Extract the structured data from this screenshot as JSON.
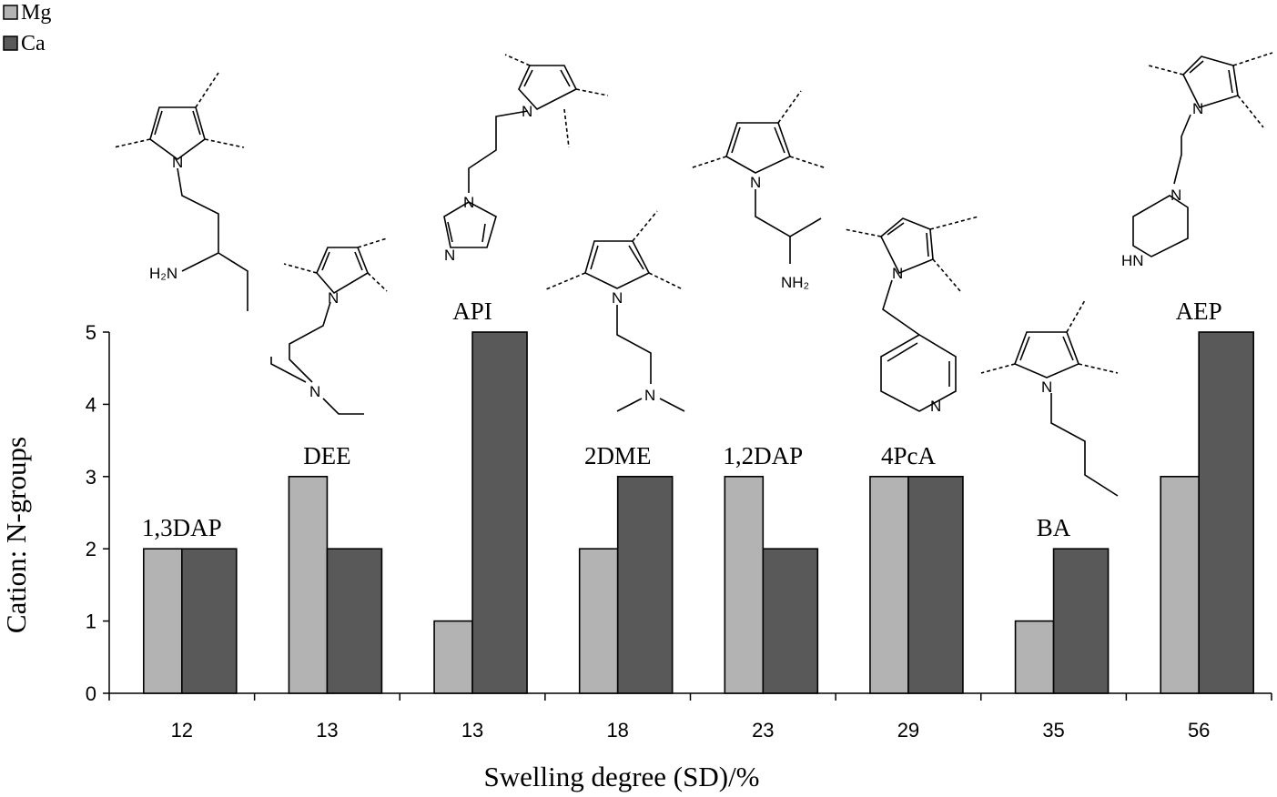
{
  "chart_data": {
    "type": "bar",
    "xlabel": "Swelling degree (SD)/%",
    "ylabel": "Cation: N-groups",
    "ylim": [
      0,
      5
    ],
    "yticks": [
      "0",
      "1",
      "2",
      "3",
      "4",
      "5"
    ],
    "categories": [
      "12",
      "13",
      "13",
      "18",
      "23",
      "29",
      "35",
      "56"
    ],
    "group_labels": [
      "1,3DAP",
      "DEE",
      "API",
      "2DME",
      "1,2DAP",
      "4PcA",
      "BA",
      "AEP"
    ],
    "series": [
      {
        "name": "Mg",
        "color": "#b3b3b3",
        "values": [
          2,
          3,
          1,
          2,
          3,
          3,
          1,
          3
        ]
      },
      {
        "name": "Ca",
        "color": "#595959",
        "values": [
          2,
          2,
          5,
          3,
          2,
          3,
          2,
          5
        ]
      }
    ],
    "legend_position": "top-left",
    "grid": false
  },
  "structures": {
    "atom_n": "N",
    "amine_h2n": "H₂N",
    "amine_nh2": "NH₂",
    "amine_hn": "HN"
  }
}
